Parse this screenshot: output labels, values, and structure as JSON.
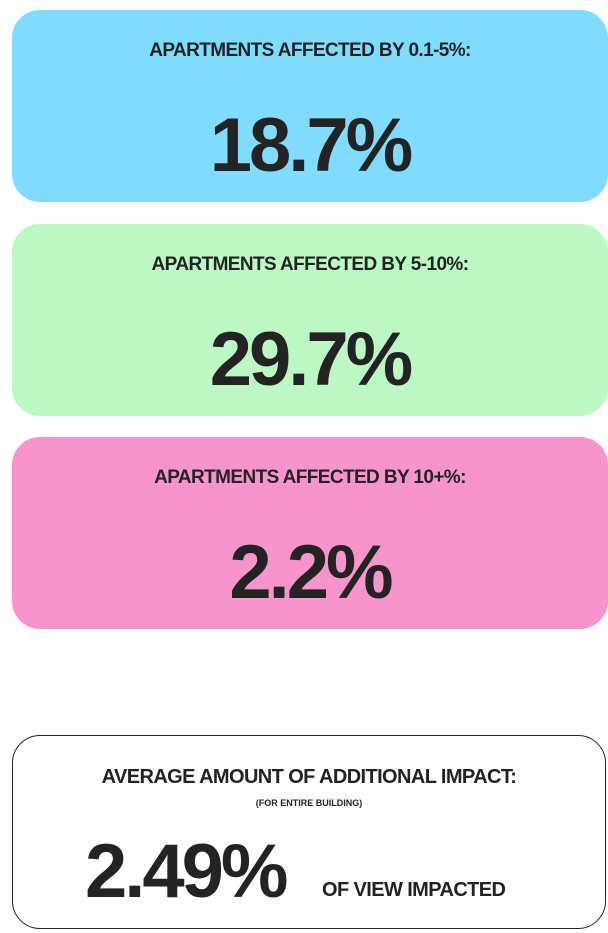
{
  "cards": [
    {
      "label": "APARTMENTS AFFECTED BY 0.1-5%:",
      "value": "18.7%"
    },
    {
      "label": "APARTMENTS AFFECTED BY 5-10%:",
      "value": "29.7%"
    },
    {
      "label": "APARTMENTS AFFECTED BY 10+%:",
      "value": "2.2%"
    }
  ],
  "summary": {
    "label": "AVERAGE AMOUNT OF ADDITIONAL IMPACT:",
    "sublabel": "(FOR ENTIRE BUILDING)",
    "value": "2.49%",
    "unit": "OF VIEW IMPACTED"
  }
}
